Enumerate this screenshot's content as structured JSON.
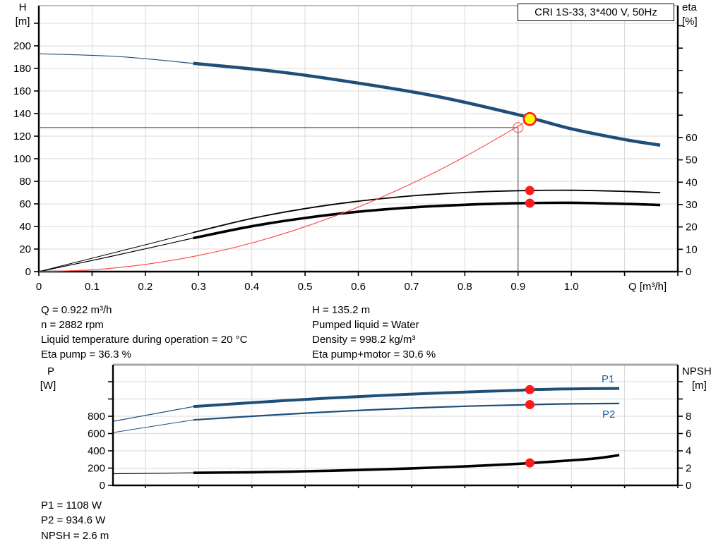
{
  "title_box": {
    "label": "CRI 1S-33, 3*400 V, 50Hz"
  },
  "axis_labels": {
    "h": "H",
    "h_unit": "[m]",
    "eta": "eta",
    "eta_unit": "[%]",
    "q": "Q [m³/h]",
    "p": "P",
    "p_unit": "[W]",
    "npsh": "NPSH",
    "npsh_unit": "[m]"
  },
  "curve_labels": {
    "p1": "P1",
    "p2": "P2"
  },
  "annotations": {
    "top_left": [
      "Q = 0.922 m³/h",
      "n = 2882 rpm",
      "Liquid temperature during operation = 20 °C",
      "Eta pump = 36.3 %"
    ],
    "top_right": [
      "H = 135.2 m",
      "Pumped liquid = Water",
      "Density = 998.2 kg/m³",
      "Eta pump+motor = 30.6 %"
    ],
    "bottom": [
      "P1 = 1108 W",
      "P2 = 934.6 W",
      "NPSH = 2.6 m"
    ]
  },
  "colors": {
    "curve_blue": "#1f4e79",
    "curve_black": "#000000",
    "system_red": "#ff4040",
    "marker_red": "#ff1a1a",
    "marker_yellow": "#ffff00",
    "marker_open_red": "#ff7070",
    "label_blue": "#1f5c9e",
    "grid": "#d9d9d9",
    "crosshair": "#595959",
    "border_gray": "#a9a9a9",
    "axis_black": "#000000"
  },
  "chart_data": [
    {
      "type": "line",
      "name": "head-efficiency-chart",
      "title": "CRI 1S-33, 3*400 V, 50Hz",
      "x_axis": {
        "label": "Q [m³/h]",
        "min": 0,
        "max": 1.2,
        "tick_step": 0.1,
        "tick_labels": [
          "0",
          "0.1",
          "0.2",
          "0.3",
          "0.4",
          "0.5",
          "0.6",
          "0.7",
          "0.8",
          "0.9",
          "1.0"
        ]
      },
      "y_left": {
        "label": "H [m]",
        "min": 0,
        "max": 235.6,
        "tick_step": 20,
        "tick_labels": [
          "0",
          "20",
          "40",
          "60",
          "80",
          "100",
          "120",
          "140",
          "160",
          "180",
          "200"
        ]
      },
      "y_right": {
        "label": "eta [%]",
        "min": 0,
        "max": 119,
        "tick_step": 10,
        "tick_labels": [
          "0",
          "10",
          "20",
          "30",
          "40",
          "50",
          "60"
        ]
      },
      "legend": "none",
      "grid": true,
      "crosshair": {
        "q": 0.9,
        "value": 127.6,
        "axis": "left"
      },
      "series": [
        {
          "name": "pump-curve-h",
          "axis": "left",
          "color": "#1f4e79",
          "split": 0.29,
          "w_thin": 1.2,
          "w_thick": 4.5,
          "points": [
            [
              0,
              193
            ],
            [
              0.15,
              190.5
            ],
            [
              0.29,
              184.5
            ],
            [
              0.45,
              177
            ],
            [
              0.6,
              167
            ],
            [
              0.75,
              155
            ],
            [
              0.9,
              139
            ],
            [
              1.0,
              126.5
            ],
            [
              1.1,
              117
            ],
            [
              1.167,
              112
            ]
          ]
        },
        {
          "name": "eta-pump-curve",
          "axis": "right",
          "color": "#000000",
          "split": 0.29,
          "w_thin": 1,
          "w_thick": 1.8,
          "points": [
            [
              0,
              0
            ],
            [
              0.1,
              6
            ],
            [
              0.2,
              12
            ],
            [
              0.29,
              17.5
            ],
            [
              0.4,
              23.8
            ],
            [
              0.5,
              28.2
            ],
            [
              0.6,
              31.5
            ],
            [
              0.7,
              33.9
            ],
            [
              0.8,
              35.4
            ],
            [
              0.9,
              36.2
            ],
            [
              1.0,
              36.4
            ],
            [
              1.1,
              35.9
            ],
            [
              1.167,
              35.3
            ]
          ]
        },
        {
          "name": "eta-pump-motor-curve",
          "axis": "right",
          "color": "#000000",
          "split": 0.29,
          "w_thin": 1.2,
          "w_thick": 3.6,
          "points": [
            [
              0,
              0
            ],
            [
              0.1,
              5
            ],
            [
              0.2,
              10.2
            ],
            [
              0.29,
              15
            ],
            [
              0.4,
              20.3
            ],
            [
              0.5,
              24
            ],
            [
              0.6,
              26.8
            ],
            [
              0.7,
              28.7
            ],
            [
              0.8,
              29.9
            ],
            [
              0.9,
              30.6
            ],
            [
              1.0,
              30.8
            ],
            [
              1.1,
              30.3
            ],
            [
              1.167,
              29.8
            ]
          ]
        },
        {
          "name": "system-curve",
          "axis": "left",
          "color": "#ff4040",
          "split": null,
          "w": 1.1,
          "points": [
            [
              0,
              0
            ],
            [
              0.1,
              1.6
            ],
            [
              0.2,
              6.4
            ],
            [
              0.3,
              14.3
            ],
            [
              0.4,
              25.4
            ],
            [
              0.5,
              39.8
            ],
            [
              0.6,
              57.2
            ],
            [
              0.7,
              77.9
            ],
            [
              0.8,
              101.8
            ],
            [
              0.9,
              128.8
            ],
            [
              0.922,
              135.2
            ]
          ]
        }
      ],
      "markers": [
        {
          "name": "duty-point-circle",
          "style": "open",
          "axis": "left",
          "q": 0.9,
          "value": 127.6
        },
        {
          "name": "operating-point-marker",
          "style": "yellow",
          "axis": "left",
          "q": 0.922,
          "value": 135.2
        },
        {
          "name": "eta-pump-point",
          "style": "red",
          "axis": "right",
          "q": 0.922,
          "value": 36.3
        },
        {
          "name": "eta-pump-motor-point",
          "style": "red",
          "axis": "right",
          "q": 0.922,
          "value": 30.6
        }
      ]
    },
    {
      "type": "line",
      "name": "power-npsh-chart",
      "x_axis": {
        "label": "",
        "min": 0.139,
        "max": 1.2,
        "tick_step": 0.1,
        "tick_labels": []
      },
      "y_left": {
        "label": "P [W]",
        "min": 0,
        "max": 1396,
        "tick_step": 200,
        "tick_labels": [
          "0",
          "200",
          "400",
          "600",
          "800"
        ]
      },
      "y_right": {
        "label": "NPSH [m]",
        "min": 0,
        "max": 13.96,
        "tick_step": 2,
        "tick_labels": [
          "0",
          "2",
          "4",
          "6",
          "8"
        ]
      },
      "legend": "inline-labels",
      "grid": true,
      "series": [
        {
          "name": "p1-curve",
          "axis": "left",
          "color": "#1f4e79",
          "split": 0.29,
          "w_thin": 1.2,
          "w_thick": 4,
          "points": [
            [
              0.14,
              742
            ],
            [
              0.29,
              912
            ],
            [
              0.4,
              958
            ],
            [
              0.5,
              995
            ],
            [
              0.6,
              1028
            ],
            [
              0.7,
              1056
            ],
            [
              0.8,
              1080
            ],
            [
              0.9,
              1100
            ],
            [
              0.922,
              1108
            ],
            [
              1.0,
              1117
            ],
            [
              1.09,
              1122
            ]
          ]
        },
        {
          "name": "p2-curve",
          "axis": "left",
          "color": "#1f4e79",
          "split": 0.29,
          "w_thin": 1,
          "w_thick": 2.2,
          "points": [
            [
              0.14,
              612
            ],
            [
              0.29,
              758
            ],
            [
              0.4,
              800
            ],
            [
              0.5,
              836
            ],
            [
              0.6,
              867
            ],
            [
              0.7,
              894
            ],
            [
              0.8,
              916
            ],
            [
              0.9,
              931
            ],
            [
              0.922,
              934.6
            ],
            [
              1.0,
              944
            ],
            [
              1.09,
              948
            ]
          ]
        },
        {
          "name": "npsh-curve",
          "axis": "right",
          "color": "#000000",
          "split": 0.29,
          "w_thin": 1.2,
          "w_thick": 3.6,
          "points": [
            [
              0.14,
              1.35
            ],
            [
              0.29,
              1.45
            ],
            [
              0.4,
              1.52
            ],
            [
              0.5,
              1.63
            ],
            [
              0.6,
              1.78
            ],
            [
              0.7,
              1.97
            ],
            [
              0.8,
              2.2
            ],
            [
              0.9,
              2.5
            ],
            [
              0.922,
              2.58
            ],
            [
              1.0,
              2.9
            ],
            [
              1.05,
              3.15
            ],
            [
              1.09,
              3.5
            ]
          ]
        }
      ],
      "markers": [
        {
          "name": "p1-point",
          "style": "red",
          "axis": "left",
          "q": 0.922,
          "value": 1108
        },
        {
          "name": "p2-point",
          "style": "red",
          "axis": "left",
          "q": 0.922,
          "value": 934.6
        },
        {
          "name": "npsh-point",
          "style": "red",
          "axis": "right",
          "q": 0.922,
          "value": 2.6
        }
      ]
    }
  ]
}
